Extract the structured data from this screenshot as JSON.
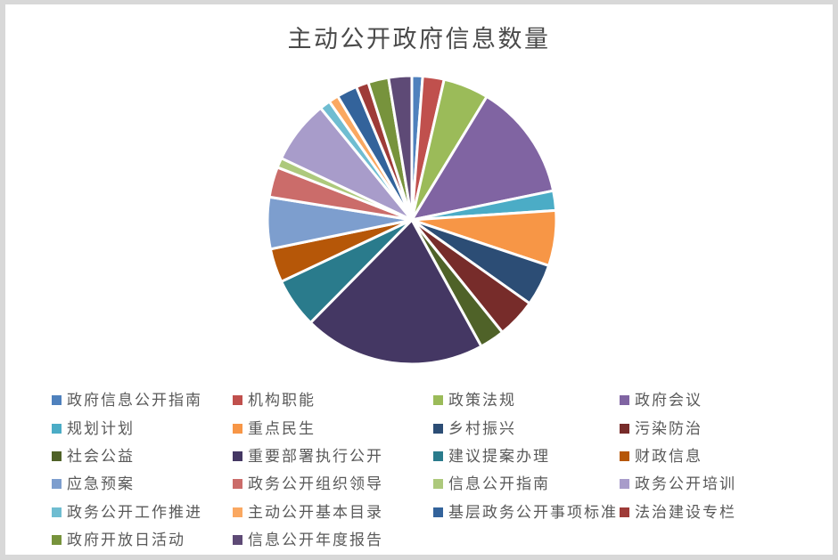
{
  "window": {
    "outer_background": "#d8d8d8",
    "canvas_background": "#ffffff"
  },
  "chart_data": {
    "type": "pie",
    "title": "主动公开政府信息数量",
    "title_color": "#4a4a4a",
    "legend_position": "bottom",
    "legend_text_color": "#595959",
    "start_angle_deg": 0,
    "direction": "clockwise",
    "slice_border_color": "#ffffff",
    "values_note": "share_pct estimated from slice arc angles; no numeric labels shown in chart",
    "series": [
      {
        "name": "政府信息公开指南",
        "share_pct": 1.2,
        "color": "#4F81BD"
      },
      {
        "name": "机构职能",
        "share_pct": 2.4,
        "color": "#C0504D"
      },
      {
        "name": "政策法规",
        "share_pct": 5.1,
        "color": "#9BBB59"
      },
      {
        "name": "政府会议",
        "share_pct": 13.1,
        "color": "#8064A2"
      },
      {
        "name": "规划计划",
        "share_pct": 2.2,
        "color": "#4BACC6"
      },
      {
        "name": "重点民生",
        "share_pct": 6.2,
        "color": "#F79646"
      },
      {
        "name": "乡村振兴",
        "share_pct": 4.7,
        "color": "#2C4D75"
      },
      {
        "name": "污染防治",
        "share_pct": 4.4,
        "color": "#772C2A"
      },
      {
        "name": "社会公益",
        "share_pct": 2.8,
        "color": "#4F6228"
      },
      {
        "name": "重要部署执行公开",
        "share_pct": 20.4,
        "color": "#443763"
      },
      {
        "name": "建议提案办理",
        "share_pct": 5.6,
        "color": "#2A7B8C"
      },
      {
        "name": "财政信息",
        "share_pct": 3.8,
        "color": "#B65708"
      },
      {
        "name": "应急预案",
        "share_pct": 5.8,
        "color": "#7D9ECE"
      },
      {
        "name": "政务公开组织领导",
        "share_pct": 3.4,
        "color": "#CB6C6A"
      },
      {
        "name": "信息公开指南",
        "share_pct": 1.1,
        "color": "#ADC97C"
      },
      {
        "name": "政务公开培训",
        "share_pct": 7.1,
        "color": "#A89CCA"
      },
      {
        "name": "政务公开工作推进",
        "share_pct": 1.2,
        "color": "#6FBDD1"
      },
      {
        "name": "主动公开基本目录",
        "share_pct": 1.1,
        "color": "#FAA861"
      },
      {
        "name": "基层政务公开事项标准",
        "share_pct": 2.3,
        "color": "#33639B"
      },
      {
        "name": "法治建设专栏",
        "share_pct": 1.4,
        "color": "#9E3B38"
      },
      {
        "name": "政府开放日活动",
        "share_pct": 2.3,
        "color": "#77933C"
      },
      {
        "name": "信息公开年度报告",
        "share_pct": 2.6,
        "color": "#5E4A76"
      }
    ]
  }
}
